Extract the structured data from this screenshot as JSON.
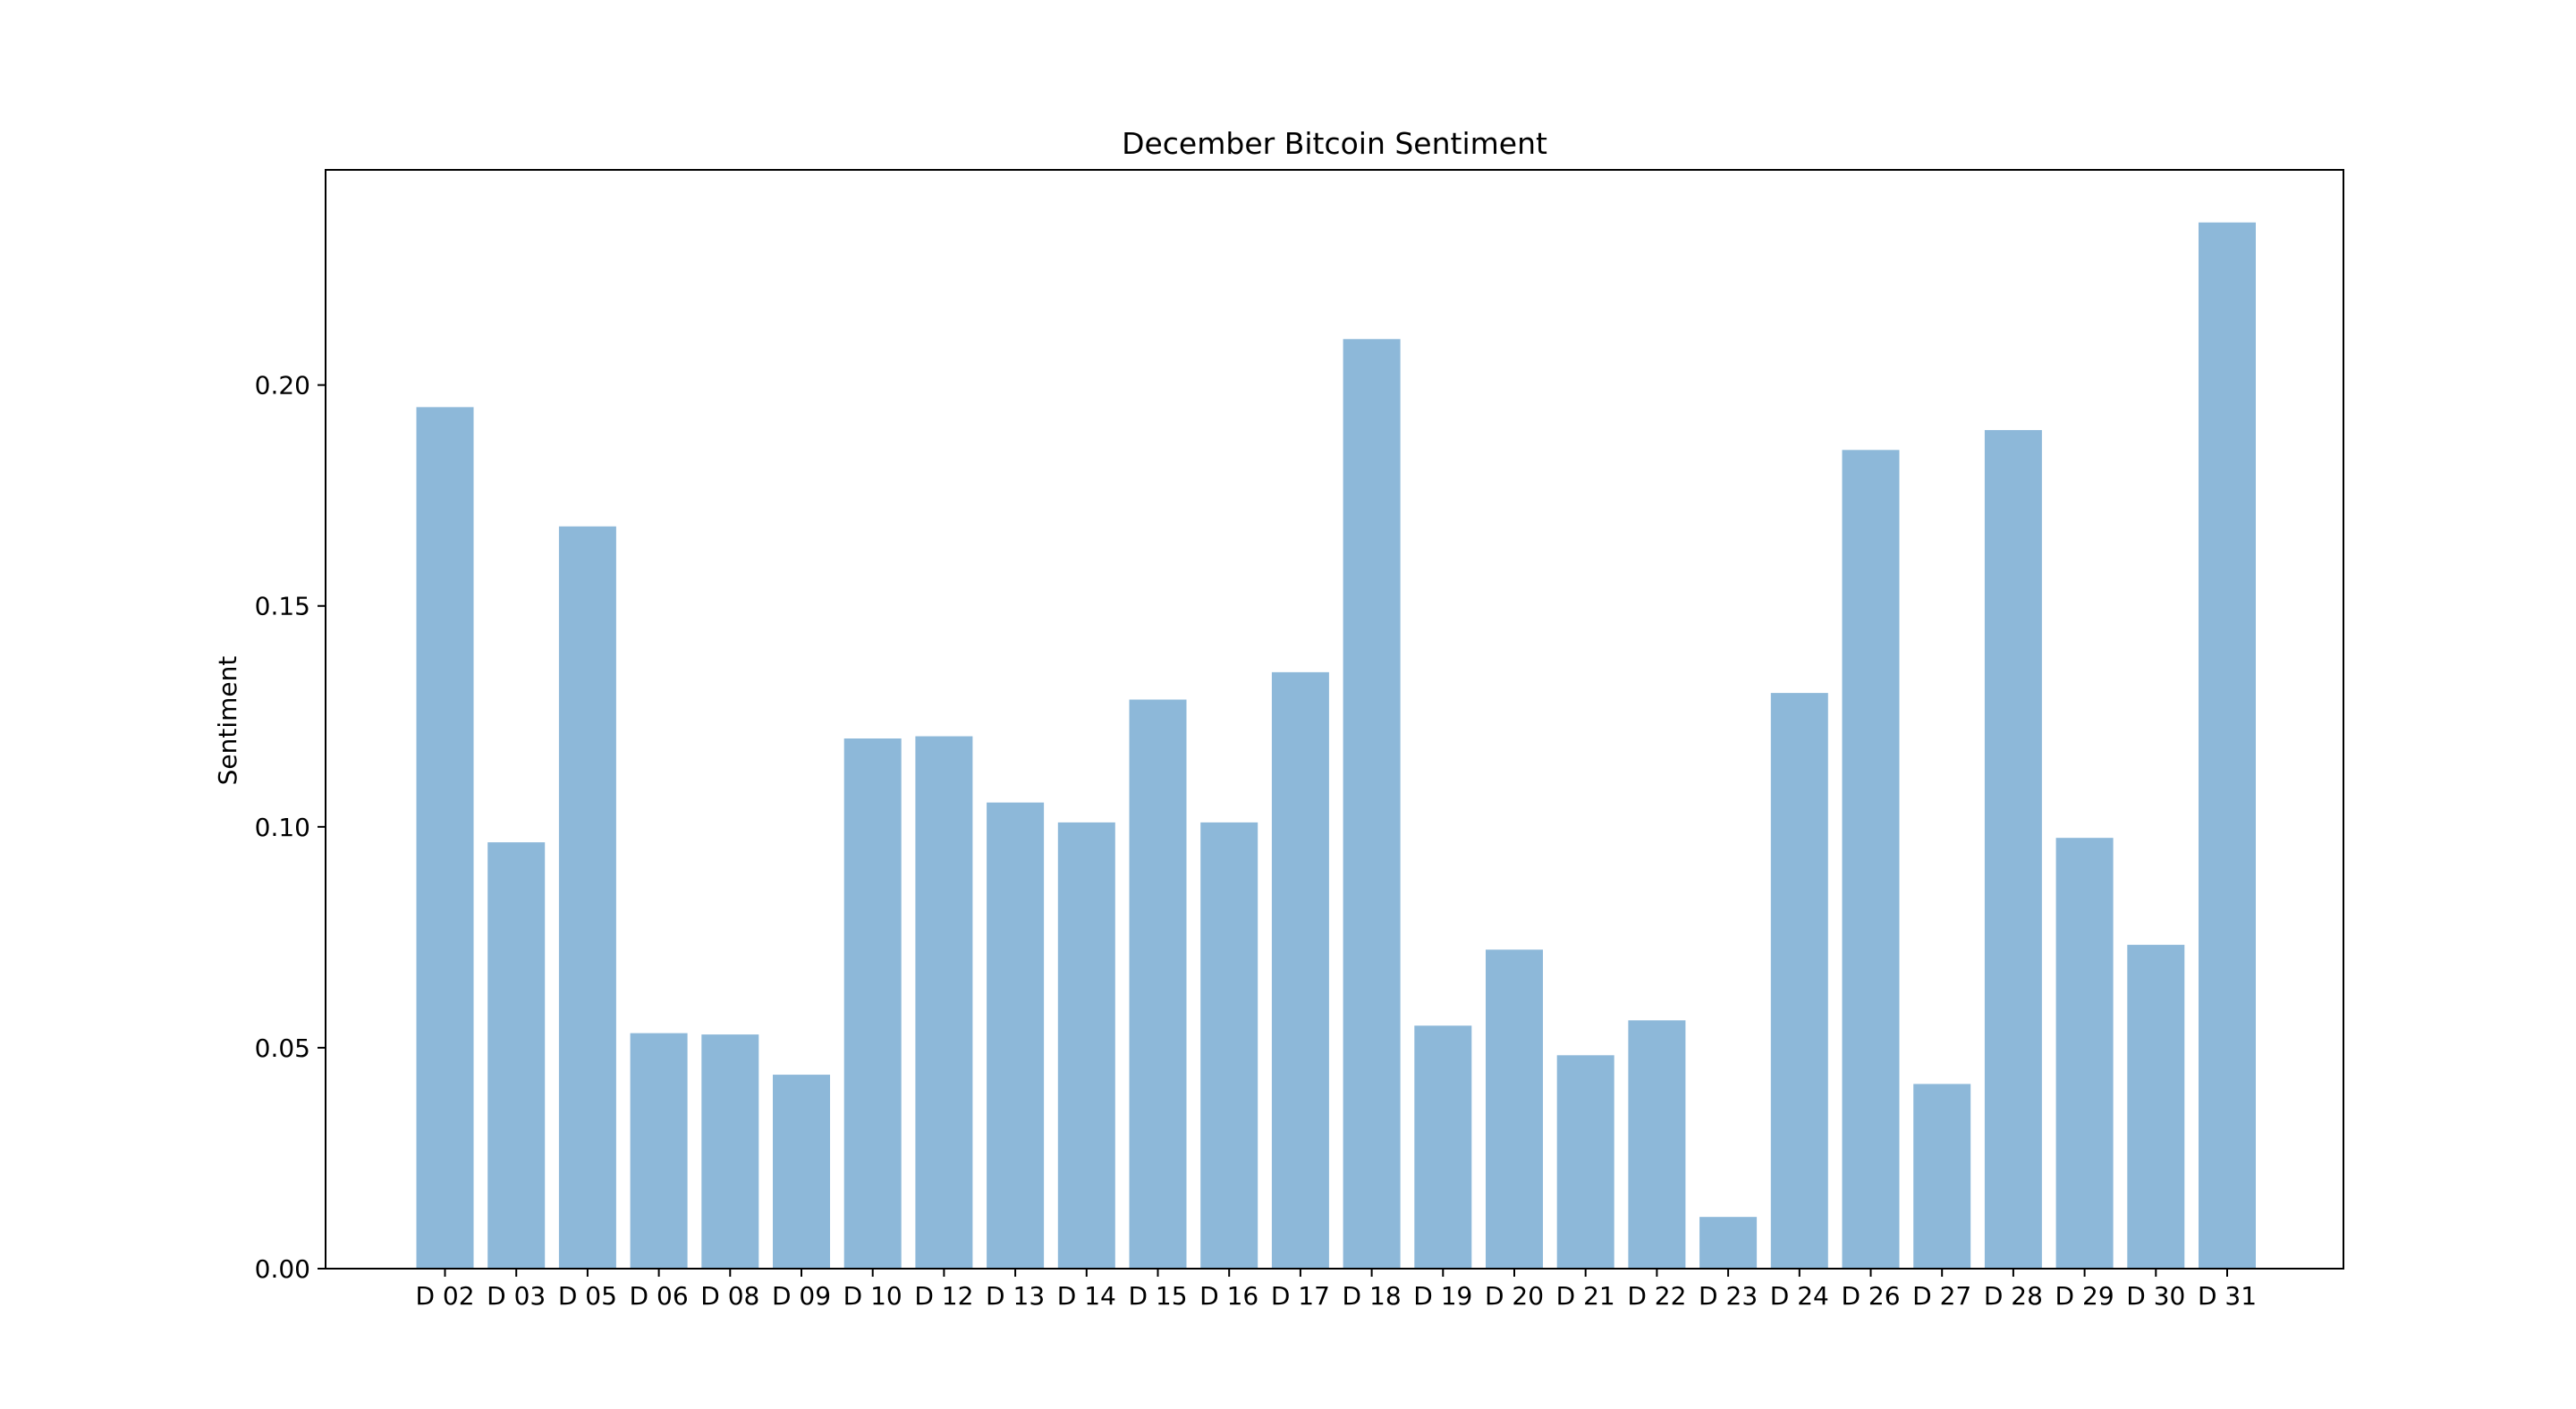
{
  "chart_data": {
    "type": "bar",
    "title": "December Bitcoin Sentiment",
    "xlabel": "",
    "ylabel": "Sentiment",
    "categories": [
      "D 02",
      "D 03",
      "D 05",
      "D 06",
      "D 08",
      "D 09",
      "D 10",
      "D 12",
      "D 13",
      "D 14",
      "D 15",
      "D 16",
      "D 17",
      "D 18",
      "D 19",
      "D 20",
      "D 21",
      "D 22",
      "D 23",
      "D 24",
      "D 26",
      "D 27",
      "D 28",
      "D 29",
      "D 30",
      "D 31"
    ],
    "values": [
      0.195,
      0.0965,
      0.168,
      0.0533,
      0.053,
      0.0439,
      0.12,
      0.1205,
      0.1055,
      0.101,
      0.1288,
      0.101,
      0.135,
      0.2104,
      0.055,
      0.0722,
      0.0483,
      0.0562,
      0.0117,
      0.1303,
      0.1853,
      0.0418,
      0.1898,
      0.0975,
      0.0733,
      0.2368
    ],
    "yticks": [
      "0.00",
      "0.05",
      "0.10",
      "0.15",
      "0.20"
    ],
    "ylim": [
      0,
      0.2487
    ],
    "grid": false,
    "legend": "none",
    "bar_color": "#8db8d9",
    "axis_color": "#000000"
  }
}
